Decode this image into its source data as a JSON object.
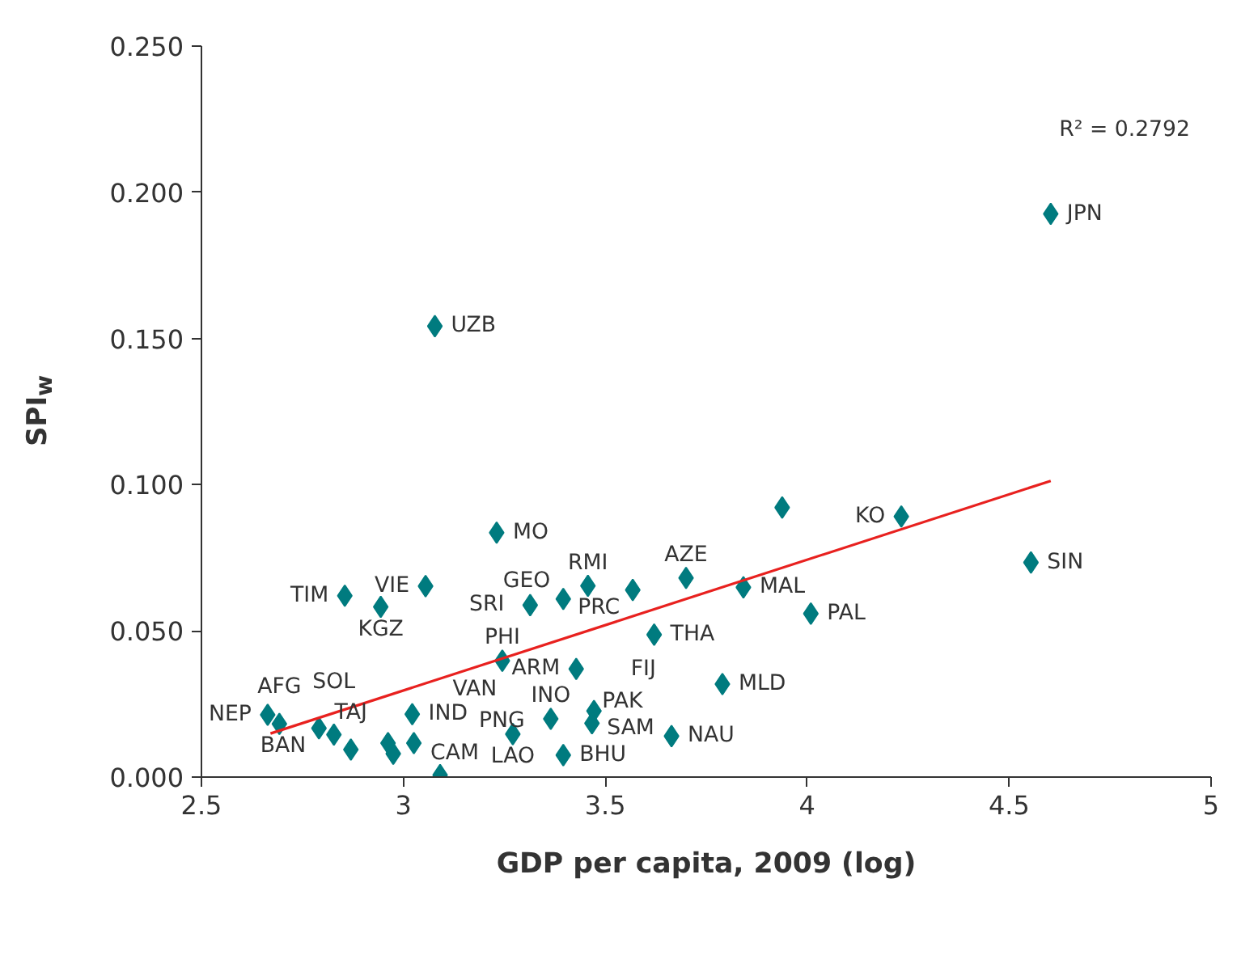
{
  "chart_data": {
    "type": "scatter",
    "xlabel": "GDP per capita, 2009 (log)",
    "ylabel": "SPI$_{w}$",
    "xlim": [
      2.5,
      5
    ],
    "ylim": [
      0,
      0.25
    ],
    "xticks": [
      2.5,
      3,
      3.5,
      4,
      4.5,
      5
    ],
    "yticks": [
      {
        "value": 0,
        "label": "0.000"
      },
      {
        "value": 0.05,
        "label": "0.050"
      },
      {
        "value": 0.1,
        "label": "0.100"
      },
      {
        "value": 0.15,
        "label": "0.150"
      },
      {
        "value": 0.2,
        "label": "0.200"
      },
      {
        "value": 0.25,
        "label": "0.250"
      }
    ],
    "grid": false,
    "marker": "diamond",
    "series": [
      {
        "color": "#007b7f",
        "x": [
          2.664,
          2.693,
          2.791,
          2.828,
          2.87,
          2.855,
          2.944,
          3.055,
          3.022,
          2.962,
          2.975,
          3.026,
          3.091,
          3.078,
          3.231,
          3.245,
          3.271,
          3.314,
          3.396,
          3.457,
          3.365,
          3.396,
          3.428,
          3.472,
          3.467,
          3.568,
          3.621,
          3.664,
          3.7,
          3.842,
          4.009,
          3.79,
          3.938,
          4.233,
          4.554,
          4.603
        ],
        "values": [
          0.0213,
          0.0182,
          0.0167,
          0.0145,
          0.0094,
          0.062,
          0.0582,
          0.0653,
          0.0215,
          0.0116,
          0.008,
          0.0116,
          0.0007,
          0.1542,
          0.0836,
          0.0398,
          0.0147,
          0.0588,
          0.0609,
          0.0654,
          0.0199,
          0.0075,
          0.037,
          0.0226,
          0.0184,
          0.064,
          0.0487,
          0.014,
          0.0681,
          0.0649,
          0.0559,
          0.0318,
          0.0922,
          0.0891,
          0.0734,
          0.1926
        ]
      },
      {
        "type": "line",
        "marker": "none",
        "color": "#e8211f",
        "x": [
          2.671,
          4.603
        ],
        "values": [
          0.0149,
          0.1013
        ]
      }
    ],
    "annotations": [
      "R² = 0.2792",
      {
        "text": "NEP",
        "x": 2.664,
        "y": 0.0213
      },
      {
        "text": "BAN",
        "x": 2.791,
        "y": 0.0167
      },
      {
        "text": "AFG",
        "x": 2.693,
        "y": 0.0182
      },
      {
        "text": "SOL",
        "x": 2.828,
        "y": 0.0145
      },
      {
        "text": "TAJ",
        "x": 2.87,
        "y": 0.0094
      },
      {
        "text": "CAM",
        "x": 2.975,
        "y": 0.008
      },
      {
        "text": "IND",
        "x": 3.022,
        "y": 0.0215
      },
      {
        "text": "VAN",
        "x": 3.026,
        "y": 0.0116
      },
      {
        "text": "PNG",
        "x": 3.091,
        "y": 0.0007
      },
      {
        "text": "LAO",
        "x": 3.271,
        "y": 0.0147
      },
      {
        "text": "BHU",
        "x": 3.396,
        "y": 0.0075
      },
      {
        "text": "INO",
        "x": 3.365,
        "y": 0.0199
      },
      {
        "text": "PAK",
        "x": 3.396,
        "y": 0.0075
      },
      {
        "text": "SAM",
        "x": 3.472,
        "y": 0.0226
      },
      {
        "text": "FIJ",
        "x": 3.467,
        "y": 0.0184
      },
      {
        "text": "NAU",
        "x": 3.664,
        "y": 0.014
      },
      {
        "text": "PHI",
        "x": 3.245,
        "y": 0.0398
      },
      {
        "text": "ARM",
        "x": 3.428,
        "y": 0.037
      },
      {
        "text": "MLD",
        "x": 3.79,
        "y": 0.0318
      },
      {
        "text": "THA",
        "x": 3.621,
        "y": 0.0487
      },
      {
        "text": "GEO",
        "x": 3.396,
        "y": 0.0609
      },
      {
        "text": "SRI",
        "x": 3.314,
        "y": 0.0588
      },
      {
        "text": "RMI",
        "x": 3.457,
        "y": 0.0654
      },
      {
        "text": "PRC",
        "x": 3.568,
        "y": 0.064
      },
      {
        "text": "AZE",
        "x": 3.7,
        "y": 0.0681
      },
      {
        "text": "MAL",
        "x": 3.842,
        "y": 0.0649
      },
      {
        "text": "PAL",
        "x": 4.009,
        "y": 0.0559
      },
      {
        "text": "KO",
        "x": 4.233,
        "y": 0.0891
      },
      {
        "text": "SIN",
        "x": 4.554,
        "y": 0.0734
      },
      {
        "text": "JPN",
        "x": 4.603,
        "y": 0.1926
      },
      {
        "text": "TIM",
        "x": 2.855,
        "y": 0.062
      },
      {
        "text": "VIE",
        "x": 3.055,
        "y": 0.0653
      },
      {
        "text": "KGZ",
        "x": 2.944,
        "y": 0.0582
      },
      {
        "text": "MO",
        "x": 3.231,
        "y": 0.0836
      },
      {
        "text": "UZB",
        "x": 3.078,
        "y": 0.1542
      }
    ]
  }
}
